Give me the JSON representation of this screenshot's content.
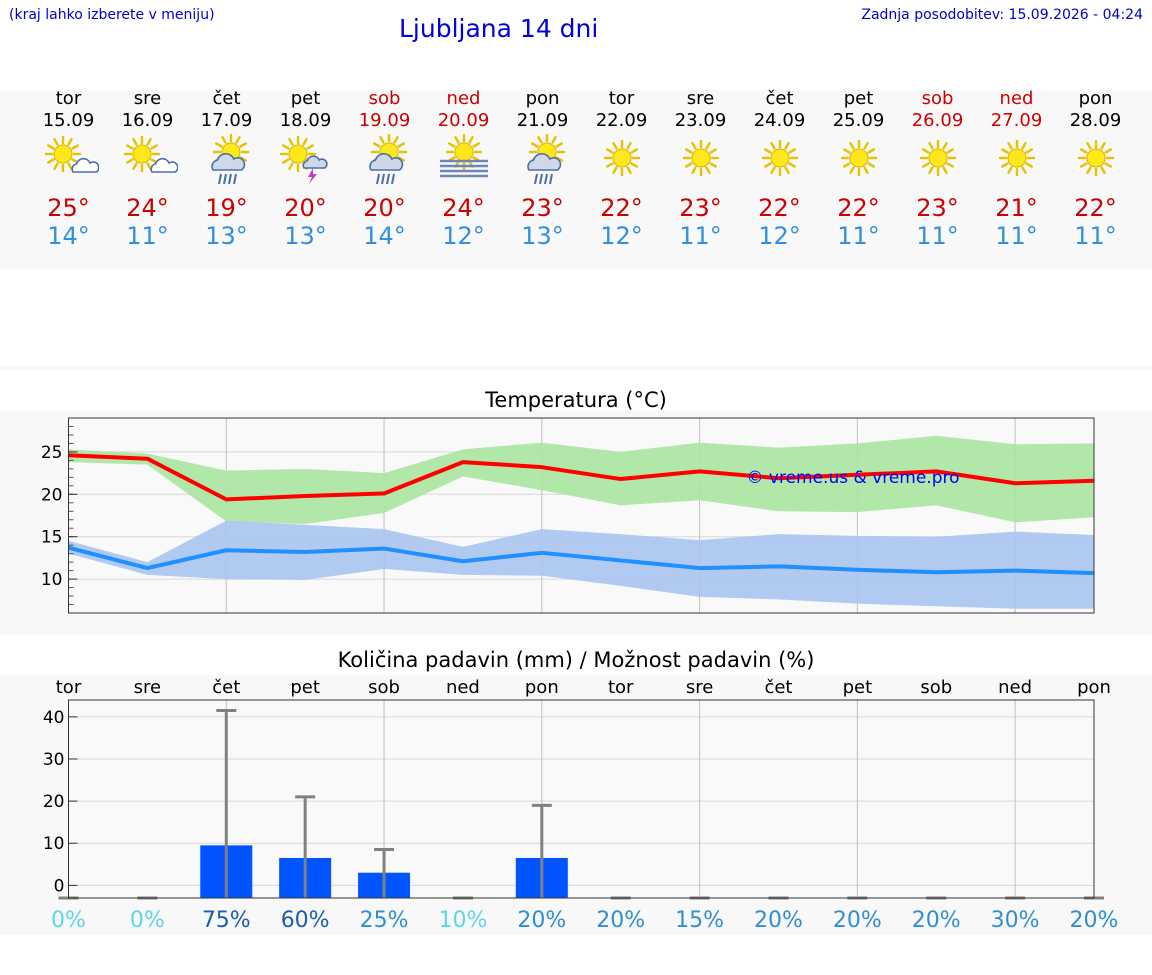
{
  "header": {
    "menu_hint": "(kraj lahko izberete v meniju)",
    "title": "Ljubljana 14 dni",
    "updated": "Zadnja posodobitev: 15.09.2026 - 04:24"
  },
  "colors": {
    "weekend": "#cc0000",
    "tmax": "#cc0000",
    "tmin": "#2f8fe0",
    "temp_max_line": "#ff0000",
    "temp_max_band": "#a8e6a0",
    "temp_min_line": "#1e90ff",
    "temp_min_band": "#a9c4f0",
    "precip_bar": "#0055ff",
    "watermark": "#0000ff"
  },
  "days": [
    {
      "name": "tor",
      "date": "15.09",
      "weekend": false,
      "icon": "sun-cloud-icon",
      "tmax": "25°",
      "tmin": "14°"
    },
    {
      "name": "sre",
      "date": "16.09",
      "weekend": false,
      "icon": "sun-cloud-icon",
      "tmax": "24°",
      "tmin": "11°"
    },
    {
      "name": "čet",
      "date": "17.09",
      "weekend": false,
      "icon": "sun-rain-cloud-icon",
      "tmax": "19°",
      "tmin": "13°"
    },
    {
      "name": "pet",
      "date": "18.09",
      "weekend": false,
      "icon": "sun-thunderstorm-icon",
      "tmax": "20°",
      "tmin": "13°"
    },
    {
      "name": "sob",
      "date": "19.09",
      "weekend": true,
      "icon": "sun-rain-cloud-icon",
      "tmax": "20°",
      "tmin": "14°"
    },
    {
      "name": "ned",
      "date": "20.09",
      "weekend": true,
      "icon": "sun-fog-icon",
      "tmax": "24°",
      "tmin": "12°"
    },
    {
      "name": "pon",
      "date": "21.09",
      "weekend": false,
      "icon": "sun-rain-cloud-icon",
      "tmax": "23°",
      "tmin": "13°"
    },
    {
      "name": "tor",
      "date": "22.09",
      "weekend": false,
      "icon": "sun-icon",
      "tmax": "22°",
      "tmin": "12°"
    },
    {
      "name": "sre",
      "date": "23.09",
      "weekend": false,
      "icon": "sun-icon",
      "tmax": "23°",
      "tmin": "11°"
    },
    {
      "name": "čet",
      "date": "24.09",
      "weekend": false,
      "icon": "sun-icon",
      "tmax": "22°",
      "tmin": "12°"
    },
    {
      "name": "pet",
      "date": "25.09",
      "weekend": false,
      "icon": "sun-icon",
      "tmax": "22°",
      "tmin": "11°"
    },
    {
      "name": "sob",
      "date": "26.09",
      "weekend": true,
      "icon": "sun-icon",
      "tmax": "23°",
      "tmin": "11°"
    },
    {
      "name": "ned",
      "date": "27.09",
      "weekend": true,
      "icon": "sun-icon",
      "tmax": "21°",
      "tmin": "11°"
    },
    {
      "name": "pon",
      "date": "28.09",
      "weekend": false,
      "icon": "sun-icon",
      "tmax": "22°",
      "tmin": "11°"
    }
  ],
  "chart_data": [
    {
      "type": "line",
      "title": "Temperatura (°C)",
      "watermark": "© vreme.us & vreme.pro",
      "ylim": [
        6,
        29
      ],
      "yticks": [
        10,
        15,
        20,
        25
      ],
      "grid": true,
      "x": [
        "15.09",
        "16.09",
        "17.09",
        "18.09",
        "19.09",
        "20.09",
        "21.09",
        "22.09",
        "23.09",
        "24.09",
        "25.09",
        "26.09",
        "27.09",
        "28.09"
      ],
      "series": [
        {
          "key": "max",
          "values": [
            24.6,
            24.2,
            19.4,
            19.8,
            20.1,
            23.8,
            23.2,
            21.8,
            22.7,
            21.9,
            22.3,
            22.7,
            21.3,
            21.6
          ],
          "band_high": [
            25.3,
            24.8,
            22.8,
            23.0,
            22.5,
            25.3,
            26.1,
            25.0,
            26.1,
            25.5,
            26.0,
            26.9,
            25.9,
            26.0
          ],
          "band_low": [
            23.8,
            23.5,
            16.8,
            16.5,
            17.8,
            22.1,
            20.5,
            18.7,
            19.3,
            18.0,
            17.9,
            18.7,
            16.7,
            17.3
          ]
        },
        {
          "key": "min",
          "values": [
            13.7,
            11.3,
            13.4,
            13.2,
            13.6,
            12.1,
            13.1,
            12.2,
            11.3,
            11.5,
            11.1,
            10.8,
            11.0,
            10.7
          ],
          "band_high": [
            14.5,
            12.0,
            16.9,
            16.4,
            15.9,
            13.8,
            15.9,
            15.3,
            14.6,
            15.3,
            15.1,
            15.0,
            15.6,
            15.2
          ],
          "band_low": [
            13.0,
            10.5,
            10.0,
            9.9,
            11.2,
            10.5,
            10.4,
            9.2,
            7.9,
            7.6,
            7.1,
            6.8,
            6.5,
            6.5
          ]
        }
      ]
    },
    {
      "type": "bar",
      "title": "Količina padavin (mm) / Možnost padavin (%)",
      "categories": [
        "tor",
        "sre",
        "čet",
        "pet",
        "sob",
        "ned",
        "pon",
        "tor",
        "sre",
        "čet",
        "pet",
        "sob",
        "ned",
        "pon"
      ],
      "ylim": [
        -3,
        44
      ],
      "ytick_values": [
        0,
        10,
        20,
        30,
        40
      ],
      "ytick_labels": [
        "0",
        "10",
        "20",
        "30",
        "40"
      ],
      "values": [
        0,
        0,
        9.5,
        6.5,
        3.0,
        0,
        6.5,
        0,
        0,
        0,
        0,
        0,
        0,
        0
      ],
      "error_high": [
        0,
        0,
        41.5,
        21.0,
        8.5,
        0,
        19.0,
        0,
        0,
        0,
        0,
        0,
        0,
        0
      ],
      "probability": [
        "0%",
        "0%",
        "75%",
        "60%",
        "25%",
        "10%",
        "20%",
        "20%",
        "15%",
        "20%",
        "20%",
        "20%",
        "30%",
        "20%"
      ],
      "probability_colors": [
        "#5cd6e8",
        "#5cd6e8",
        "#1a5fa8",
        "#1a5fa8",
        "#2f8fd0",
        "#5cd6e8",
        "#2f8fd0",
        "#2f8fd0",
        "#2f8fd0",
        "#2f8fd0",
        "#2f8fd0",
        "#2f8fd0",
        "#2f8fd0",
        "#2f8fd0"
      ]
    }
  ]
}
